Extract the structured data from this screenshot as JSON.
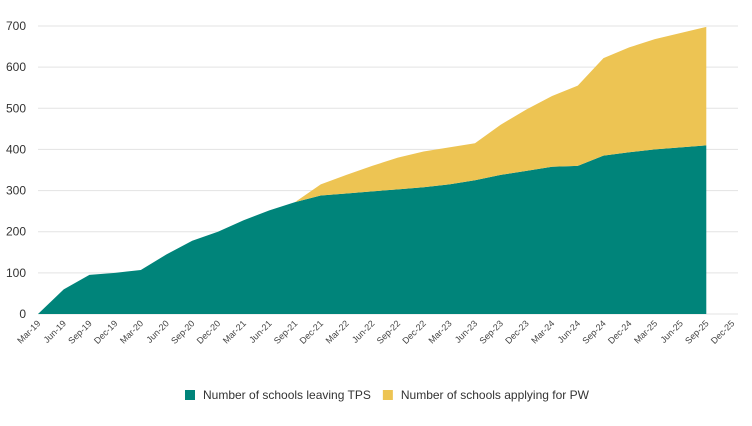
{
  "chart_data": {
    "type": "stacked-area",
    "categories": [
      "Mar-19",
      "Jun-19",
      "Sep-19",
      "Dec-19",
      "Mar-20",
      "Jun-20",
      "Sep-20",
      "Dec-20",
      "Mar-21",
      "Jun-21",
      "Sep-21",
      "Dec-21",
      "Mar-22",
      "Jun-22",
      "Sep-22",
      "Dec-22",
      "Mar-23",
      "Jun-23",
      "Sep-23",
      "Dec-23",
      "Mar-24",
      "Jun-24",
      "Sep-24",
      "Dec-24",
      "Mar-25",
      "Jun-25",
      "Sep-25",
      "Dec-25"
    ],
    "series": [
      {
        "name": "Number of schools leaving TPS",
        "color": "#00847a",
        "values": [
          0,
          60,
          95,
          100,
          107,
          145,
          178,
          200,
          228,
          252,
          272,
          288,
          293,
          298,
          303,
          308,
          315,
          325,
          338,
          348,
          358,
          360,
          385,
          393,
          400,
          405,
          410,
          null
        ]
      },
      {
        "name": "Number of schools applying for PW",
        "color": "#edc453",
        "values": [
          0,
          0,
          0,
          0,
          0,
          0,
          0,
          0,
          0,
          0,
          0,
          27,
          45,
          62,
          77,
          87,
          90,
          90,
          122,
          149,
          172,
          195,
          237,
          255,
          268,
          278,
          288,
          null
        ]
      }
    ],
    "ylim": [
      0,
      700
    ],
    "yticks": [
      0,
      100,
      200,
      300,
      400,
      500,
      600,
      700
    ],
    "grid": true
  }
}
